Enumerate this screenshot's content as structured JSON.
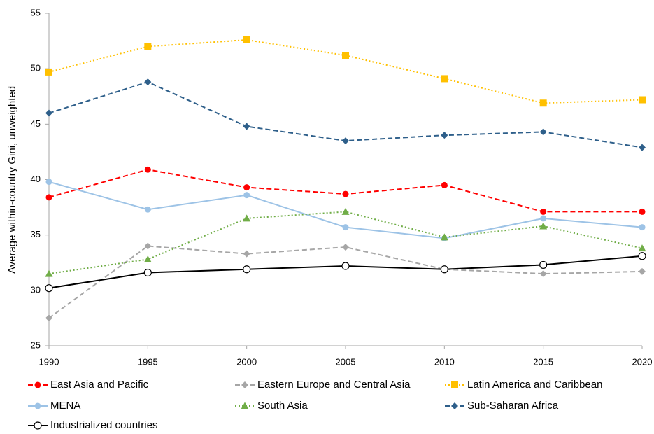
{
  "chart_data": {
    "type": "line",
    "y_label": "Average within-country Gini, unweighted",
    "x": [
      1990,
      1995,
      2000,
      2005,
      2010,
      2015,
      2020
    ],
    "xlim": [
      1990,
      2020
    ],
    "xticks": [
      1990,
      1995,
      2000,
      2005,
      2010,
      2015,
      2020
    ],
    "ylim": [
      25,
      55
    ],
    "yticks": [
      25,
      30,
      35,
      40,
      45,
      50,
      55
    ],
    "grid": false,
    "legend": "bottom",
    "series": [
      {
        "name": "East Asia and Pacific",
        "color": "#ff0000",
        "dash": "dashed",
        "marker": "circle",
        "values": [
          38.4,
          40.9,
          39.3,
          38.7,
          39.5,
          37.1,
          37.1
        ]
      },
      {
        "name": "Eastern Europe and Central Asia",
        "color": "#a6a6a6",
        "dash": "dashed",
        "marker": "diamond",
        "values": [
          27.5,
          34.0,
          33.3,
          33.9,
          31.9,
          31.5,
          31.7
        ]
      },
      {
        "name": "Latin America and Caribbean",
        "color": "#ffc000",
        "dash": "dotted",
        "marker": "square",
        "values": [
          49.7,
          52.0,
          52.6,
          51.2,
          49.1,
          46.9,
          47.2
        ]
      },
      {
        "name": "MENA",
        "color": "#9dc3e6",
        "dash": "solid",
        "marker": "circle",
        "values": [
          39.8,
          37.3,
          38.6,
          35.7,
          34.7,
          36.5,
          35.7
        ]
      },
      {
        "name": "South Asia",
        "color": "#70ad47",
        "dash": "dotted",
        "marker": "triangle",
        "values": [
          31.5,
          32.8,
          36.5,
          37.1,
          34.8,
          35.8,
          33.8
        ]
      },
      {
        "name": "Sub-Saharan Africa",
        "color": "#2e5f8a",
        "dash": "dashed",
        "marker": "diamond",
        "values": [
          46.0,
          48.8,
          44.8,
          43.5,
          44.0,
          44.3,
          42.9
        ]
      },
      {
        "name": "Industrialized countries",
        "color": "#000000",
        "dash": "solid",
        "marker": "open-circle",
        "values": [
          30.2,
          31.6,
          31.9,
          32.2,
          31.9,
          32.3,
          33.1
        ]
      }
    ]
  }
}
